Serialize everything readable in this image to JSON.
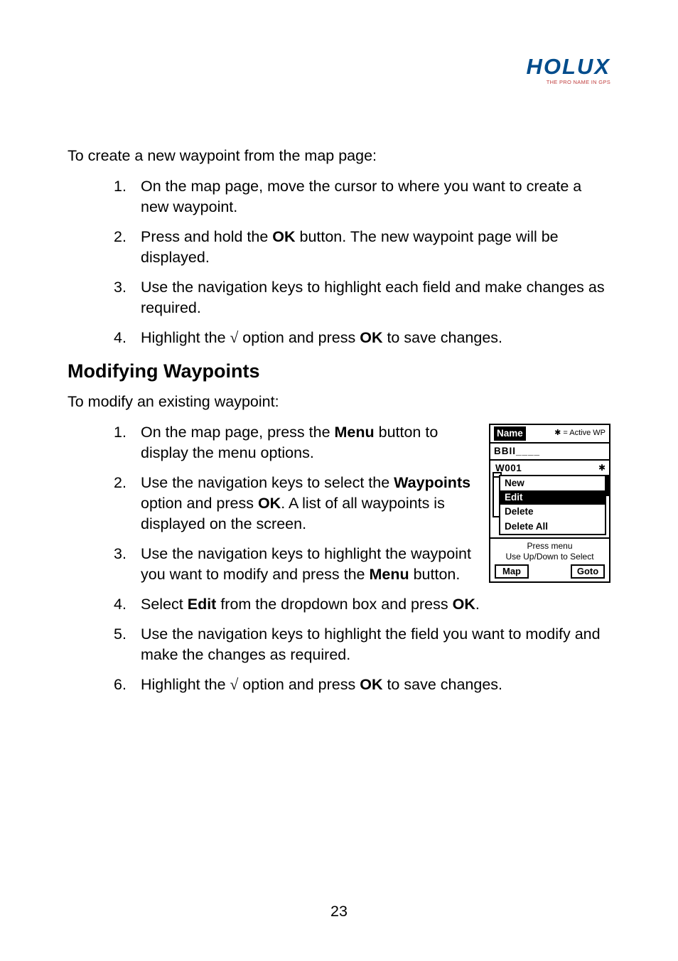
{
  "logo": {
    "main": "HOLUX",
    "sub": "THE PRO NAME IN GPS"
  },
  "lead1": "To create a new waypoint from the map page:",
  "list1": [
    {
      "n": "1.",
      "t1": "On the map page, move the cursor to where you want to create a new waypoint."
    },
    {
      "n": "2.",
      "t1": "Press and hold the ",
      "b1": "OK",
      "t2": " button. The new waypoint page will be displayed."
    },
    {
      "n": "3.",
      "t1": "Use the navigation keys to highlight each field and make changes as required."
    },
    {
      "n": "4.",
      "t1": "Highlight the ",
      "sym": "√",
      "t2": " option and press ",
      "b1": "OK",
      "t3": " to save changes."
    }
  ],
  "heading": "Modifying Waypoints",
  "lead2": "To modify an existing waypoint:",
  "list2": [
    {
      "n": "1.",
      "t1": "On the map page, press the ",
      "b1": "Menu",
      "t2": " button to display the menu options."
    },
    {
      "n": "2.",
      "t1": "Use the navigation keys to select the ",
      "b1": "Waypoints",
      "t2": " option and press ",
      "b2": "OK",
      "t3": ". A list of all waypoints is displayed on the screen."
    },
    {
      "n": "3.",
      "t1": "Use the navigation keys to highlight the waypoint you want to modify and press the ",
      "b1": "Menu",
      "t2": " button."
    },
    {
      "n": "4.",
      "t1": "Select ",
      "b1": "Edit",
      "t2": " from the dropdown box and press ",
      "b2": "OK",
      "t3": "."
    },
    {
      "n": "5.",
      "t1": "Use the navigation keys to highlight the field you want to modify and make the changes as required."
    },
    {
      "n": "6.",
      "t1": "Highlight the ",
      "sym": "√",
      "t2": " option and press ",
      "b1": "OK",
      "t3": " to save changes."
    }
  ],
  "device": {
    "name_label": "Name",
    "active_hint": "✱ = Active WP",
    "bbii": "BBII____",
    "w001": "W001",
    "star": "✱",
    "menu": [
      "New",
      "Edit",
      "Delete",
      "Delete All"
    ],
    "selected_index": 1,
    "hint1": "Press menu",
    "hint2": "Use Up/Down to Select",
    "btn_left": "Map",
    "btn_right": "Goto"
  },
  "page_number": "23"
}
